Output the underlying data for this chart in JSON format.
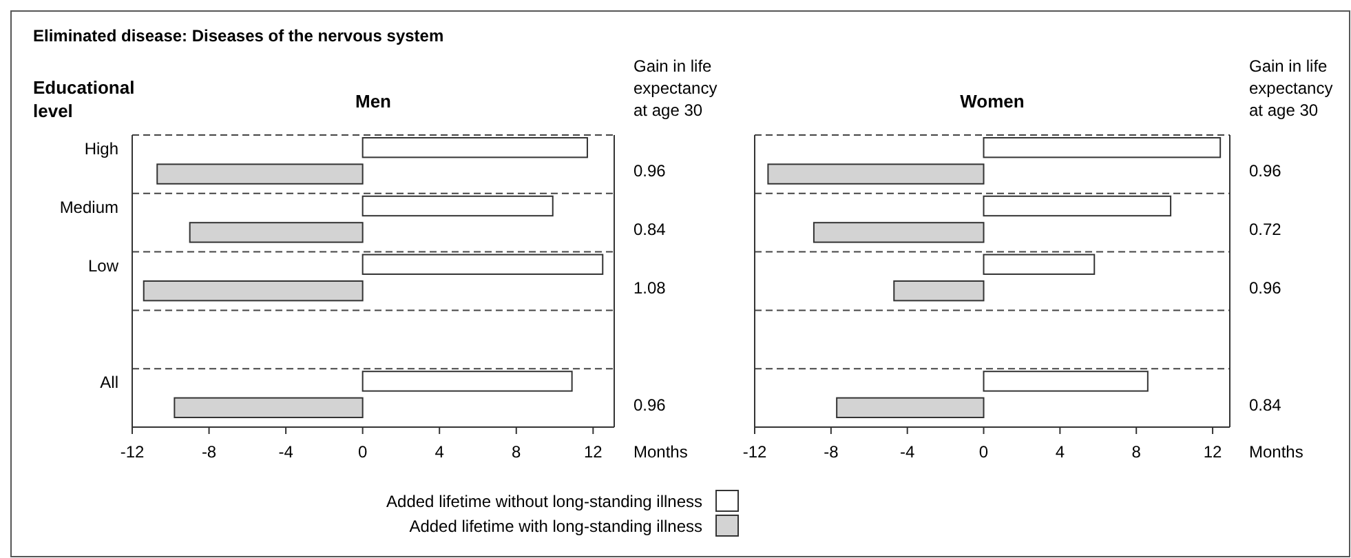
{
  "chart_data": [
    {
      "type": "bar",
      "orientation": "horizontal",
      "title": "Eliminated disease: Diseases of the nervous system",
      "subtitle": "Men",
      "ylabel": "Educational level",
      "xlabel": "Months",
      "categories": [
        "High",
        "Medium",
        "Low",
        null,
        "All"
      ],
      "xlim": [
        -12,
        13.1
      ],
      "xticks": [
        -12,
        -8,
        -4,
        0,
        4,
        8,
        12
      ],
      "grid": "y",
      "legend": "bottom",
      "series": [
        {
          "name": "Added lifetime without long-standing illness",
          "color": "#ffffff",
          "values": [
            11.7,
            9.9,
            12.5,
            null,
            10.9
          ]
        },
        {
          "name": "Added lifetime with long-standing illness",
          "color": "#d3d3d3",
          "values": [
            -10.7,
            -9.0,
            -11.4,
            null,
            -9.8
          ]
        }
      ],
      "annotations": [
        "Gain in life expectancy at age 30",
        "0.96",
        "0.84",
        "1.08",
        "0.96"
      ]
    },
    {
      "type": "bar",
      "orientation": "horizontal",
      "subtitle": "Women",
      "xlabel": "Months",
      "categories": [
        null,
        null,
        null,
        null,
        null
      ],
      "xlim": [
        -12,
        12.9
      ],
      "xticks": [
        -12,
        -8,
        -4,
        0,
        4,
        8,
        12
      ],
      "grid": "y",
      "series": [
        {
          "color": "#ffffff",
          "values": [
            12.4,
            9.8,
            5.8,
            null,
            8.6
          ]
        },
        {
          "color": "#d3d3d3",
          "values": [
            -11.3,
            -8.9,
            -4.7,
            null,
            -7.7
          ]
        }
      ],
      "annotations": [
        "Gain in life expectancy at age 30",
        "0.96",
        "0.72",
        "0.96",
        "0.84"
      ]
    }
  ]
}
